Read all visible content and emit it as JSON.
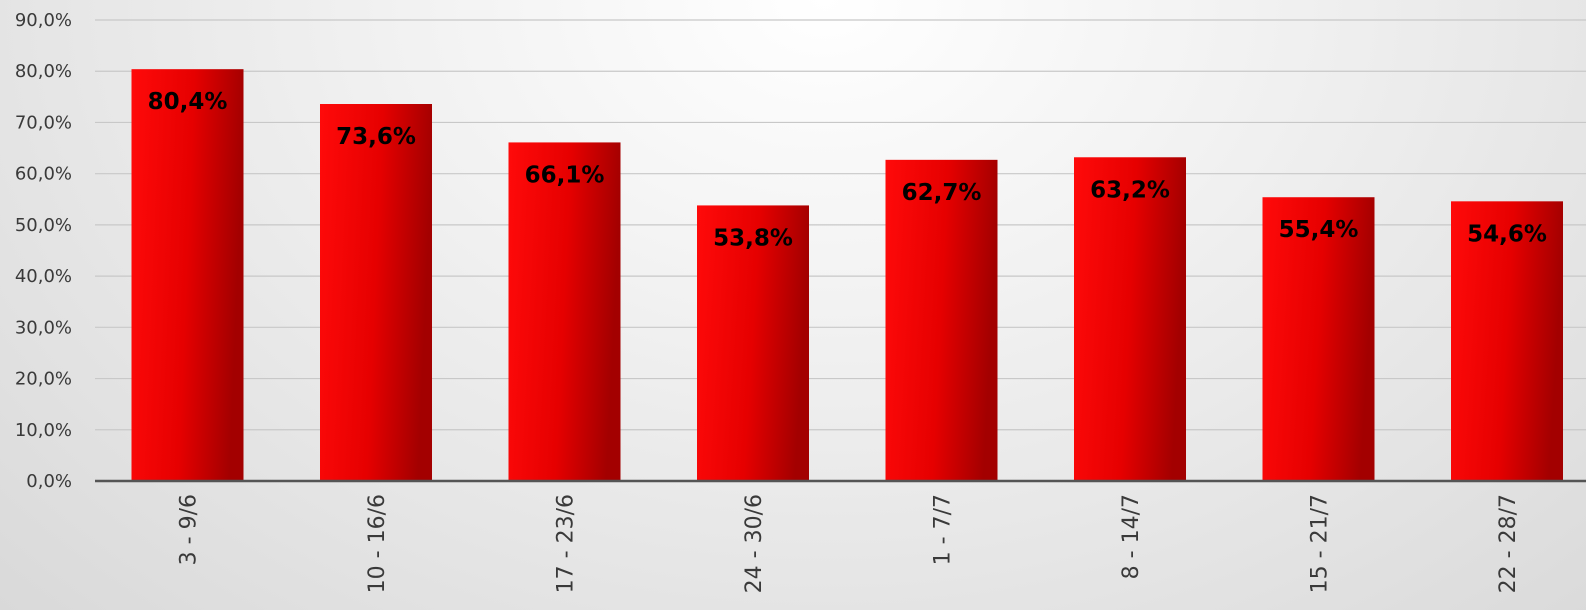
{
  "chart_data": {
    "type": "bar",
    "categories": [
      "3 - 9/6",
      "10 - 16/6",
      "17 - 23/6",
      "24 - 30/6",
      "1 - 7/7",
      "8 - 14/7",
      "15 - 21/7",
      "22 - 28/7"
    ],
    "values": [
      80.4,
      73.6,
      66.1,
      53.8,
      62.7,
      63.2,
      55.4,
      54.6
    ],
    "data_labels": [
      "80,4%",
      "73,6%",
      "66,1%",
      "53,8%",
      "62,7%",
      "63,2%",
      "55,4%",
      "54,6%"
    ],
    "ytick_values": [
      0,
      10,
      20,
      30,
      40,
      50,
      60,
      70,
      80,
      90
    ],
    "ytick_labels": [
      "0,0%",
      "10,0%",
      "20,0%",
      "30,0%",
      "40,0%",
      "50,0%",
      "60,0%",
      "70,0%",
      "80,0%",
      "90,0%"
    ],
    "ylim": [
      0,
      90
    ],
    "grid": true,
    "legend": "none",
    "title": "",
    "xlabel": "",
    "ylabel": ""
  },
  "colors": {
    "bar_light": "#ff0a0a",
    "bar_mid": "#e60000",
    "bar_dark": "#a30000",
    "gridline": "#c8c8c8",
    "axis": "#555555"
  }
}
